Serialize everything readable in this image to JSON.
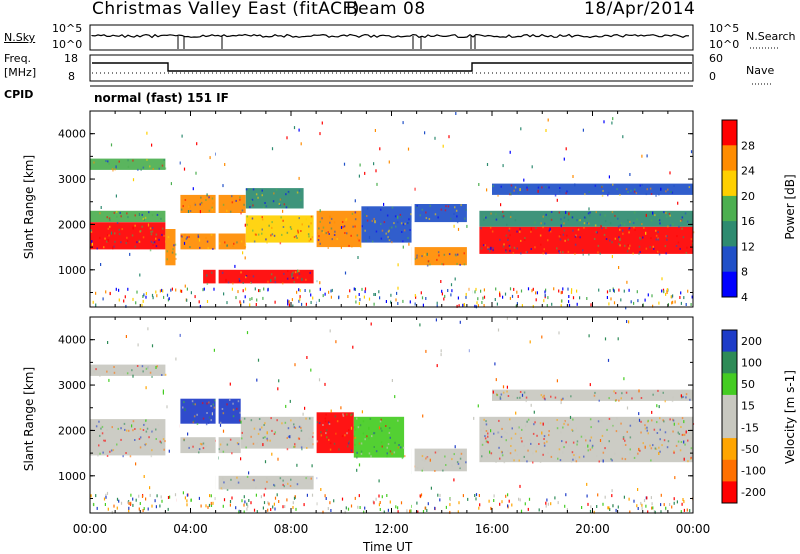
{
  "header": {
    "title": "Christmas Valley East (fitACF)",
    "beam": "Beam 08",
    "date": "18/Apr/2014",
    "cpid_label": "CPID",
    "cpid_value": "normal (fast) 151 IF"
  },
  "panels": {
    "nsky": {
      "left_label": "N.Sky",
      "right_label": "N.Search",
      "left_ticks": [
        "10^5",
        "10^0"
      ],
      "right_ticks": [
        "10^5",
        "10^0"
      ]
    },
    "freq": {
      "left_label_1": "Freq.",
      "left_label_2": "[MHz]",
      "right_label": "Nave",
      "left_ticks": [
        "18",
        "8"
      ],
      "right_ticks": [
        "60",
        "0"
      ]
    }
  },
  "chart_data": [
    {
      "type": "heatmap",
      "name": "power",
      "ylabel": "Slant Range [km]",
      "xlabel": "Time UT",
      "x_ticks": [
        "00:00",
        "04:00",
        "08:00",
        "12:00",
        "16:00",
        "20:00",
        "00:00"
      ],
      "y_ticks": [
        1000,
        2000,
        3000,
        4000
      ],
      "ylim": [
        180,
        4500
      ],
      "colorbar": {
        "label": "Power [dB]",
        "ticks": [
          4,
          8,
          12,
          16,
          20,
          24,
          28
        ],
        "colors": [
          "#0000ff",
          "#2050c8",
          "#2e8b70",
          "#4caf50",
          "#ffd000",
          "#ff8c00",
          "#ff0000"
        ]
      },
      "bands": [
        {
          "t0": 0.0,
          "t1": 3.0,
          "r0": 1450,
          "r1": 2050,
          "value": 26
        },
        {
          "t0": 0.0,
          "t1": 3.0,
          "r0": 2050,
          "r1": 2300,
          "value": 14
        },
        {
          "t0": 0.0,
          "t1": 3.0,
          "r0": 3200,
          "r1": 3450,
          "value": 14
        },
        {
          "t0": 3.0,
          "t1": 3.4,
          "r0": 1100,
          "r1": 1900,
          "value": 22
        },
        {
          "t0": 3.6,
          "t1": 6.2,
          "r0": 1450,
          "r1": 1800,
          "value": 24
        },
        {
          "t0": 3.6,
          "t1": 6.2,
          "r0": 2250,
          "r1": 2650,
          "value": 22
        },
        {
          "t0": 4.5,
          "t1": 9.0,
          "r0": 700,
          "r1": 1000,
          "value": 26
        },
        {
          "t0": 6.2,
          "t1": 9.0,
          "r0": 1600,
          "r1": 2200,
          "value": 20
        },
        {
          "t0": 6.2,
          "t1": 8.5,
          "r0": 2350,
          "r1": 2800,
          "value": 12
        },
        {
          "t0": 9.0,
          "t1": 10.8,
          "r0": 1500,
          "r1": 2300,
          "value": 22
        },
        {
          "t0": 10.8,
          "t1": 12.8,
          "r0": 1600,
          "r1": 2400,
          "value": 8
        },
        {
          "t0": 12.8,
          "t1": 15.0,
          "r0": 1100,
          "r1": 1500,
          "value": 24
        },
        {
          "t0": 12.8,
          "t1": 15.0,
          "r0": 2050,
          "r1": 2450,
          "value": 8
        },
        {
          "t0": 15.5,
          "t1": 24.0,
          "r0": 1350,
          "r1": 1950,
          "value": 26
        },
        {
          "t0": 15.5,
          "t1": 24.0,
          "r0": 1950,
          "r1": 2300,
          "value": 12
        },
        {
          "t0": 16.0,
          "t1": 24.0,
          "r0": 2650,
          "r1": 2900,
          "value": 8
        }
      ]
    },
    {
      "type": "heatmap",
      "name": "velocity",
      "ylabel": "Slant Range [km]",
      "xlabel": "Time UT",
      "x_ticks": [
        "00:00",
        "04:00",
        "08:00",
        "12:00",
        "16:00",
        "20:00",
        "00:00"
      ],
      "y_ticks": [
        1000,
        2000,
        3000,
        4000
      ],
      "ylim": [
        180,
        4500
      ],
      "colorbar": {
        "label": "Velocity [m s-1]",
        "ticks": [
          200,
          100,
          50,
          15,
          -15,
          -50,
          -100,
          -200
        ],
        "colors": [
          "#1e3cc8",
          "#2e8b57",
          "#44cc22",
          "#c8c8c0",
          "#c8c8c0",
          "#ffa500",
          "#ff7000",
          "#ff0000"
        ]
      },
      "bands": [
        {
          "t0": 0.0,
          "t1": 3.0,
          "r0": 1450,
          "r1": 2250,
          "value": 0
        },
        {
          "t0": 0.0,
          "t1": 3.0,
          "r0": 3200,
          "r1": 3450,
          "value": 0
        },
        {
          "t0": 3.6,
          "t1": 6.0,
          "r0": 2150,
          "r1": 2700,
          "value": 200
        },
        {
          "t0": 3.6,
          "t1": 6.0,
          "r0": 1500,
          "r1": 1850,
          "value": 0
        },
        {
          "t0": 5.0,
          "t1": 9.0,
          "r0": 700,
          "r1": 1000,
          "value": 0
        },
        {
          "t0": 6.0,
          "t1": 9.0,
          "r0": 1600,
          "r1": 2300,
          "value": 0
        },
        {
          "t0": 9.0,
          "t1": 10.5,
          "r0": 1500,
          "r1": 2400,
          "value": -200
        },
        {
          "t0": 10.5,
          "t1": 12.5,
          "r0": 1400,
          "r1": 2300,
          "value": 50
        },
        {
          "t0": 12.8,
          "t1": 15.0,
          "r0": 1100,
          "r1": 1600,
          "value": 0
        },
        {
          "t0": 15.5,
          "t1": 24.0,
          "r0": 1300,
          "r1": 2300,
          "value": 0
        },
        {
          "t0": 16.0,
          "t1": 24.0,
          "r0": 2650,
          "r1": 2900,
          "value": 0
        }
      ]
    }
  ]
}
